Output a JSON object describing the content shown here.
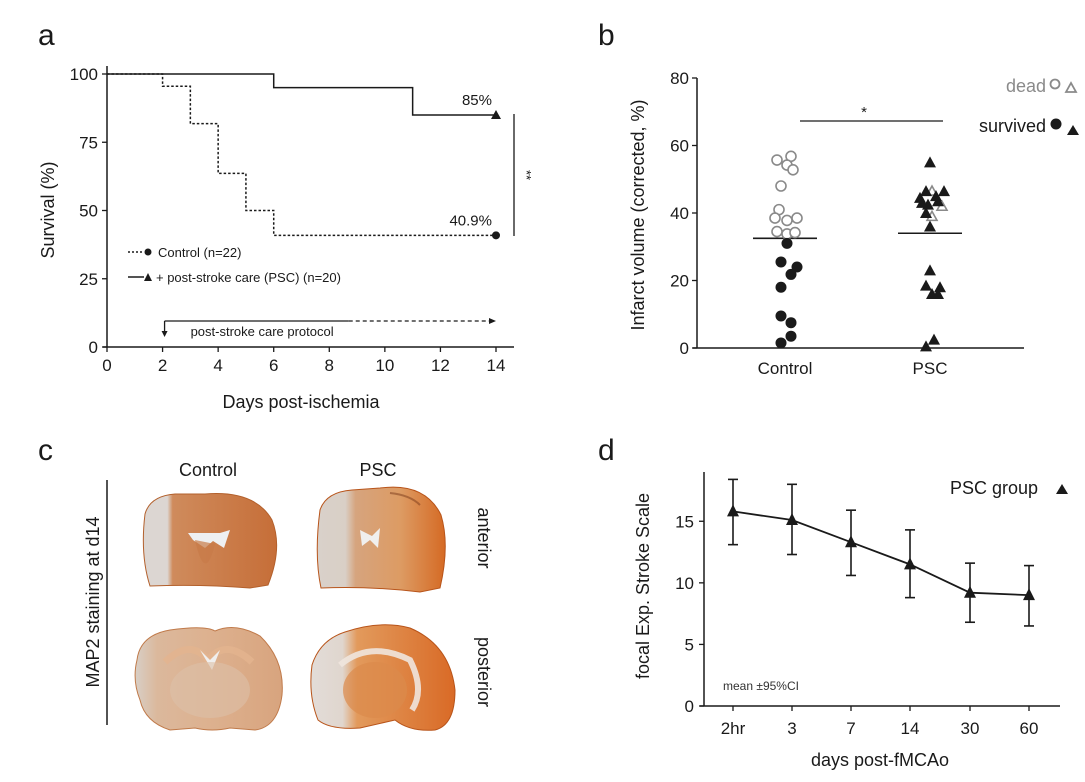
{
  "colors": {
    "ink": "#1a1a1a",
    "dead": "#8a8a8a",
    "stain_dark": "#c4642a",
    "stain_mid": "#d58a52",
    "stain_pale": "#d9cfc6"
  },
  "chart_data": [
    {
      "panel": "a",
      "type": "line",
      "subtype": "kaplan-meier step",
      "title": "",
      "xlabel": "Days post-ischemia",
      "ylabel": "Survival (%)",
      "xlim": [
        0,
        14
      ],
      "ylim": [
        0,
        100
      ],
      "xticks": [
        "0",
        "2",
        "4",
        "6",
        "8",
        "10",
        "12",
        "14"
      ],
      "yticks": [
        "0",
        "25",
        "50",
        "75",
        "100"
      ],
      "series": [
        {
          "name": "Control (n=22)",
          "style": "dotted",
          "marker": "circle",
          "steps": [
            [
              0,
              100
            ],
            [
              2,
              95.5
            ],
            [
              3,
              81.8
            ],
            [
              4,
              63.6
            ],
            [
              5,
              50.0
            ],
            [
              6,
              40.9
            ],
            [
              14,
              40.9
            ]
          ],
          "end_label": "40.9%"
        },
        {
          "name": "+ post-stroke care (PSC) (n=20)",
          "style": "solid",
          "marker": "triangle",
          "steps": [
            [
              0,
              100
            ],
            [
              6,
              95
            ],
            [
              11,
              85
            ],
            [
              14,
              85
            ]
          ],
          "end_label": "85%"
        }
      ],
      "legend_position": "lower-left",
      "significance": "**",
      "protocol_annotation": {
        "label": "post-stroke care protocol",
        "start_day": 2,
        "solid_until_day": 8.7,
        "end_day": 14
      }
    },
    {
      "panel": "b",
      "type": "scatter",
      "subtype": "dot plot with mean lines",
      "xlabel": "",
      "ylabel": "Infarct volume (corrected, %)",
      "ylim": [
        0,
        80
      ],
      "yticks": [
        "0",
        "20",
        "40",
        "60",
        "80"
      ],
      "categories": [
        "Control",
        "PSC"
      ],
      "legend": [
        {
          "label": "dead",
          "markers": [
            "open-circle",
            "open-triangle"
          ],
          "color": "#8a8a8a"
        },
        {
          "label": "survived",
          "markers": [
            "filled-circle",
            "filled-triangle"
          ],
          "color": "#1a1a1a"
        }
      ],
      "legend_position": "top-right",
      "significance": "*",
      "groups": [
        {
          "name": "Control",
          "mean": 32.5,
          "dead": [
            [
              -0.2,
              55.7
            ],
            [
              0.15,
              56.8
            ],
            [
              0.05,
              54.2
            ],
            [
              0.2,
              52.8
            ],
            [
              -0.1,
              48.0
            ],
            [
              -0.15,
              41.0
            ],
            [
              -0.25,
              38.5
            ],
            [
              0.05,
              37.8
            ],
            [
              0.3,
              38.5
            ],
            [
              -0.2,
              34.5
            ],
            [
              0.05,
              33.8
            ],
            [
              0.25,
              34.2
            ]
          ],
          "survived": [
            [
              0.05,
              31.0
            ],
            [
              -0.1,
              25.5
            ],
            [
              0.3,
              24.0
            ],
            [
              0.15,
              21.8
            ],
            [
              -0.1,
              18.0
            ],
            [
              -0.1,
              9.5
            ],
            [
              0.15,
              7.5
            ],
            [
              0.15,
              3.5
            ],
            [
              -0.1,
              1.5
            ]
          ]
        },
        {
          "name": "PSC",
          "mean": 34.0,
          "dead": [
            [
              0.05,
              46.5
            ],
            [
              0.3,
              42.0
            ],
            [
              0.05,
              39.0
            ]
          ],
          "survived": [
            [
              0.0,
              55.0
            ],
            [
              -0.25,
              44.5
            ],
            [
              -0.1,
              46.5
            ],
            [
              0.35,
              46.5
            ],
            [
              -0.2,
              43.0
            ],
            [
              0.15,
              45.0
            ],
            [
              -0.05,
              42.5
            ],
            [
              0.2,
              43.5
            ],
            [
              -0.1,
              40.0
            ],
            [
              0.0,
              36.0
            ],
            [
              0.0,
              23.0
            ],
            [
              -0.1,
              18.5
            ],
            [
              0.25,
              18.0
            ],
            [
              0.05,
              16.0
            ],
            [
              0.2,
              16.0
            ],
            [
              0.1,
              2.5
            ],
            [
              -0.1,
              0.5
            ]
          ]
        }
      ]
    },
    {
      "panel": "d",
      "type": "line",
      "subtype": "mean with error bars",
      "xlabel": "days post-fMCAo",
      "ylabel": "focal Exp. Stroke Scale",
      "ylim": [
        0,
        19
      ],
      "yticks": [
        "0",
        "5",
        "10",
        "15"
      ],
      "categories": [
        "2hr",
        "3",
        "7",
        "14",
        "30",
        "60"
      ],
      "series": [
        {
          "name": "PSC group",
          "marker": "triangle",
          "values": [
            15.8,
            15.1,
            13.3,
            11.5,
            9.2,
            9.0
          ],
          "ci_low": [
            13.1,
            12.3,
            10.6,
            8.8,
            6.8,
            6.5
          ],
          "ci_high": [
            18.4,
            18.0,
            15.9,
            14.3,
            11.6,
            11.4
          ]
        }
      ],
      "legend_position": "top-right",
      "annotation": "mean ±95%CI"
    }
  ],
  "panels": {
    "a": {
      "letter": "a"
    },
    "b": {
      "letter": "b"
    },
    "c": {
      "letter": "c",
      "row_title": "MAP2 staining at d14",
      "col_labels": [
        "Control",
        "PSC"
      ],
      "row_labels": [
        "anterior",
        "posterior"
      ]
    },
    "d": {
      "letter": "d"
    }
  }
}
